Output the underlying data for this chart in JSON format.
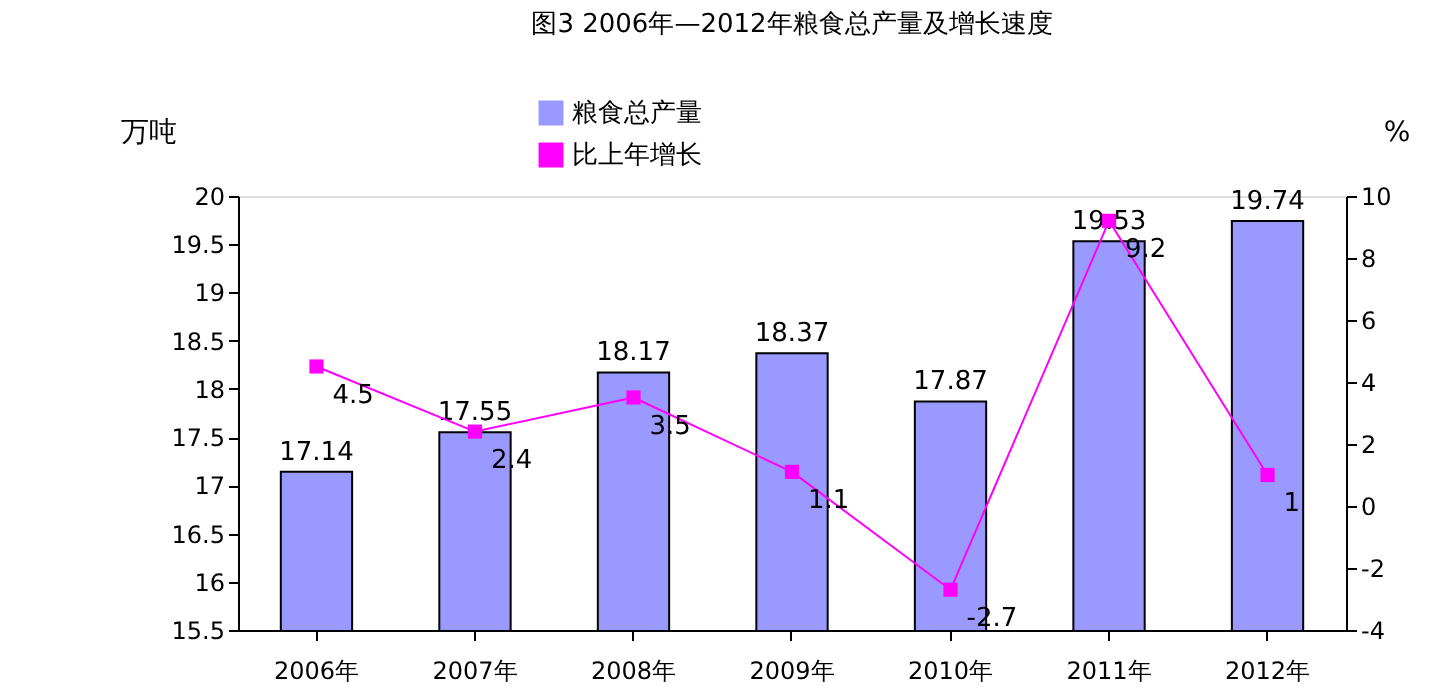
{
  "chart_data": {
    "type": "bar",
    "title": "图3  2006年—2012年粮食总产量及增长速度",
    "ylabel": "万吨",
    "y2label": "%",
    "categories": [
      "2006年",
      "2007年",
      "2008年",
      "2009年",
      "2010年",
      "2011年",
      "2012年"
    ],
    "series": [
      {
        "name": "粮食总产量",
        "color": "#9999ff",
        "values": [
          17.14,
          17.55,
          18.17,
          18.37,
          17.87,
          19.53,
          19.74
        ]
      },
      {
        "name": "比上年增长",
        "type": "line",
        "axis": "y2",
        "color": "#ff00ff",
        "marker": "square",
        "values": [
          4.5,
          2.4,
          3.5,
          1.1,
          -2.7,
          9.2,
          1
        ]
      }
    ],
    "ylim": [
      15.5,
      20
    ],
    "yticks": [
      15.5,
      16,
      16.5,
      17,
      17.5,
      18,
      18.5,
      19,
      19.5,
      20
    ],
    "y2lim": [
      -4,
      10
    ],
    "y2ticks": [
      -4,
      -2,
      0,
      2,
      4,
      6,
      8,
      10
    ],
    "data_labels": true,
    "grid": false,
    "legend": "top"
  }
}
